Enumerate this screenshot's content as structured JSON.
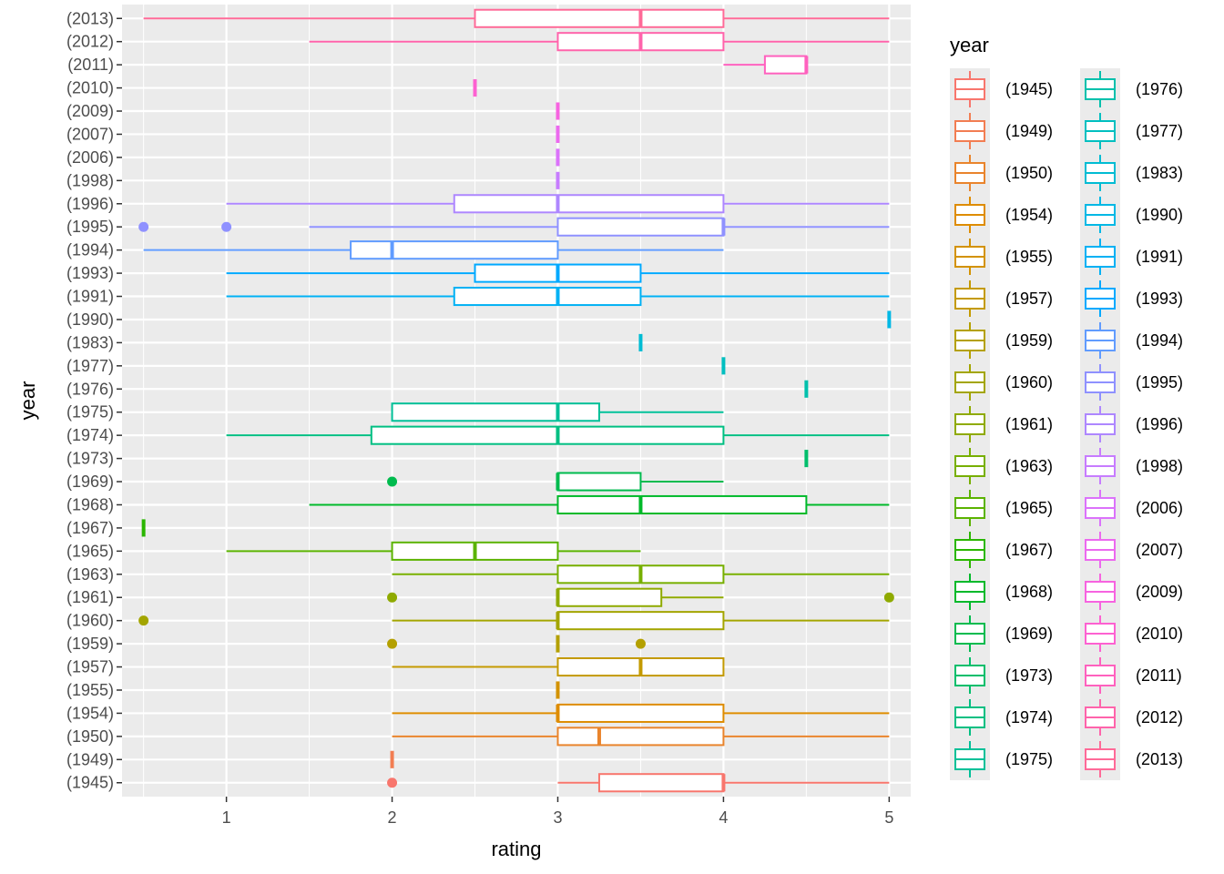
{
  "chart_data": {
    "type": "boxplot",
    "orientation": "horizontal",
    "xlabel": "rating",
    "ylabel": "year",
    "xlim": [
      0.37,
      5.13
    ],
    "xticks": [
      1,
      2,
      3,
      4,
      5
    ],
    "grid": true,
    "legend": {
      "title": "year",
      "position": "right",
      "columns": 2
    },
    "categories": [
      "(1945)",
      "(1949)",
      "(1950)",
      "(1954)",
      "(1955)",
      "(1957)",
      "(1959)",
      "(1960)",
      "(1961)",
      "(1963)",
      "(1965)",
      "(1967)",
      "(1968)",
      "(1969)",
      "(1973)",
      "(1974)",
      "(1975)",
      "(1976)",
      "(1977)",
      "(1983)",
      "(1990)",
      "(1991)",
      "(1993)",
      "(1994)",
      "(1995)",
      "(1996)",
      "(1998)",
      "(2006)",
      "(2007)",
      "(2009)",
      "(2010)",
      "(2011)",
      "(2012)",
      "(2013)"
    ],
    "colors": [
      "#F8766D",
      "#F27D52",
      "#E9842C",
      "#DE8C00",
      "#D39200",
      "#C49A00",
      "#B4A000",
      "#A3A500",
      "#8FAA00",
      "#77AF00",
      "#5BB300",
      "#2AB600",
      "#00B92A",
      "#00BB4E",
      "#00BE6B",
      "#00BF82",
      "#00C098",
      "#00C0AC",
      "#00BFC0",
      "#00BCD3",
      "#00B8E5",
      "#00B1F4",
      "#00A9FF",
      "#619CFF",
      "#8F91FF",
      "#AE87FF",
      "#C77CFF",
      "#DB72FB",
      "#EC69EF",
      "#F763E0",
      "#FD61D1",
      "#FF61BE",
      "#FF64AB",
      "#FF6A98"
    ],
    "series": [
      {
        "name": "(1945)",
        "min": 3,
        "q1": 3.25,
        "median": 4,
        "q3": 4,
        "max": 5,
        "outliers": [
          2
        ]
      },
      {
        "name": "(1949)",
        "min": 2,
        "q1": 2,
        "median": 2,
        "q3": 2,
        "max": 2,
        "outliers": []
      },
      {
        "name": "(1950)",
        "min": 2,
        "q1": 3,
        "median": 3.25,
        "q3": 4,
        "max": 5,
        "outliers": []
      },
      {
        "name": "(1954)",
        "min": 2,
        "q1": 3,
        "median": 3,
        "q3": 4,
        "max": 5,
        "outliers": []
      },
      {
        "name": "(1955)",
        "min": 3,
        "q1": 3,
        "median": 3,
        "q3": 3,
        "max": 3,
        "outliers": []
      },
      {
        "name": "(1957)",
        "min": 2,
        "q1": 3,
        "median": 3.5,
        "q3": 4,
        "max": 4,
        "outliers": []
      },
      {
        "name": "(1959)",
        "min": 3,
        "q1": 3,
        "median": 3,
        "q3": 3,
        "max": 3,
        "outliers": [
          2,
          3.5
        ]
      },
      {
        "name": "(1960)",
        "min": 2,
        "q1": 3,
        "median": 3,
        "q3": 4,
        "max": 5,
        "outliers": [
          0.5
        ]
      },
      {
        "name": "(1961)",
        "min": 3,
        "q1": 3,
        "median": 3,
        "q3": 3.625,
        "max": 4,
        "outliers": [
          2,
          5
        ]
      },
      {
        "name": "(1963)",
        "min": 2,
        "q1": 3,
        "median": 3.5,
        "q3": 4,
        "max": 5,
        "outliers": []
      },
      {
        "name": "(1965)",
        "min": 1,
        "q1": 2,
        "median": 2.5,
        "q3": 3,
        "max": 3.5,
        "outliers": []
      },
      {
        "name": "(1967)",
        "min": 0.5,
        "q1": 0.5,
        "median": 0.5,
        "q3": 0.5,
        "max": 0.5,
        "outliers": []
      },
      {
        "name": "(1968)",
        "min": 1.5,
        "q1": 3,
        "median": 3.5,
        "q3": 4.5,
        "max": 5,
        "outliers": []
      },
      {
        "name": "(1969)",
        "min": 3,
        "q1": 3,
        "median": 3,
        "q3": 3.5,
        "max": 4,
        "outliers": [
          2
        ]
      },
      {
        "name": "(1973)",
        "min": 4.5,
        "q1": 4.5,
        "median": 4.5,
        "q3": 4.5,
        "max": 4.5,
        "outliers": []
      },
      {
        "name": "(1974)",
        "min": 1,
        "q1": 1.875,
        "median": 3,
        "q3": 4,
        "max": 5,
        "outliers": []
      },
      {
        "name": "(1975)",
        "min": 2,
        "q1": 2,
        "median": 3,
        "q3": 3.25,
        "max": 4,
        "outliers": []
      },
      {
        "name": "(1976)",
        "min": 4.5,
        "q1": 4.5,
        "median": 4.5,
        "q3": 4.5,
        "max": 4.5,
        "outliers": []
      },
      {
        "name": "(1977)",
        "min": 4,
        "q1": 4,
        "median": 4,
        "q3": 4,
        "max": 4,
        "outliers": []
      },
      {
        "name": "(1983)",
        "min": 3.5,
        "q1": 3.5,
        "median": 3.5,
        "q3": 3.5,
        "max": 3.5,
        "outliers": []
      },
      {
        "name": "(1990)",
        "min": 5,
        "q1": 5,
        "median": 5,
        "q3": 5,
        "max": 5,
        "outliers": []
      },
      {
        "name": "(1991)",
        "min": 1,
        "q1": 2.375,
        "median": 3,
        "q3": 3.5,
        "max": 5,
        "outliers": []
      },
      {
        "name": "(1993)",
        "min": 1,
        "q1": 2.5,
        "median": 3,
        "q3": 3.5,
        "max": 5,
        "outliers": []
      },
      {
        "name": "(1994)",
        "min": 0.5,
        "q1": 1.75,
        "median": 2,
        "q3": 3,
        "max": 4,
        "outliers": []
      },
      {
        "name": "(1995)",
        "min": 1.5,
        "q1": 3,
        "median": 4,
        "q3": 4,
        "max": 5,
        "outliers": [
          0.5,
          1
        ]
      },
      {
        "name": "(1996)",
        "min": 1,
        "q1": 2.375,
        "median": 3,
        "q3": 4,
        "max": 5,
        "outliers": []
      },
      {
        "name": "(1998)",
        "min": 3,
        "q1": 3,
        "median": 3,
        "q3": 3,
        "max": 3,
        "outliers": []
      },
      {
        "name": "(2006)",
        "min": 3,
        "q1": 3,
        "median": 3,
        "q3": 3,
        "max": 3,
        "outliers": []
      },
      {
        "name": "(2007)",
        "min": 3,
        "q1": 3,
        "median": 3,
        "q3": 3,
        "max": 3,
        "outliers": []
      },
      {
        "name": "(2009)",
        "min": 3,
        "q1": 3,
        "median": 3,
        "q3": 3,
        "max": 3,
        "outliers": []
      },
      {
        "name": "(2010)",
        "min": 2.5,
        "q1": 2.5,
        "median": 2.5,
        "q3": 2.5,
        "max": 2.5,
        "outliers": []
      },
      {
        "name": "(2011)",
        "min": 4,
        "q1": 4.25,
        "median": 4.5,
        "q3": 4.5,
        "max": 4.5,
        "outliers": []
      },
      {
        "name": "(2012)",
        "min": 1.5,
        "q1": 3,
        "median": 3.5,
        "q3": 4,
        "max": 5,
        "outliers": []
      },
      {
        "name": "(2013)",
        "min": 0.5,
        "q1": 2.5,
        "median": 3.5,
        "q3": 4,
        "max": 5,
        "outliers": []
      }
    ]
  }
}
